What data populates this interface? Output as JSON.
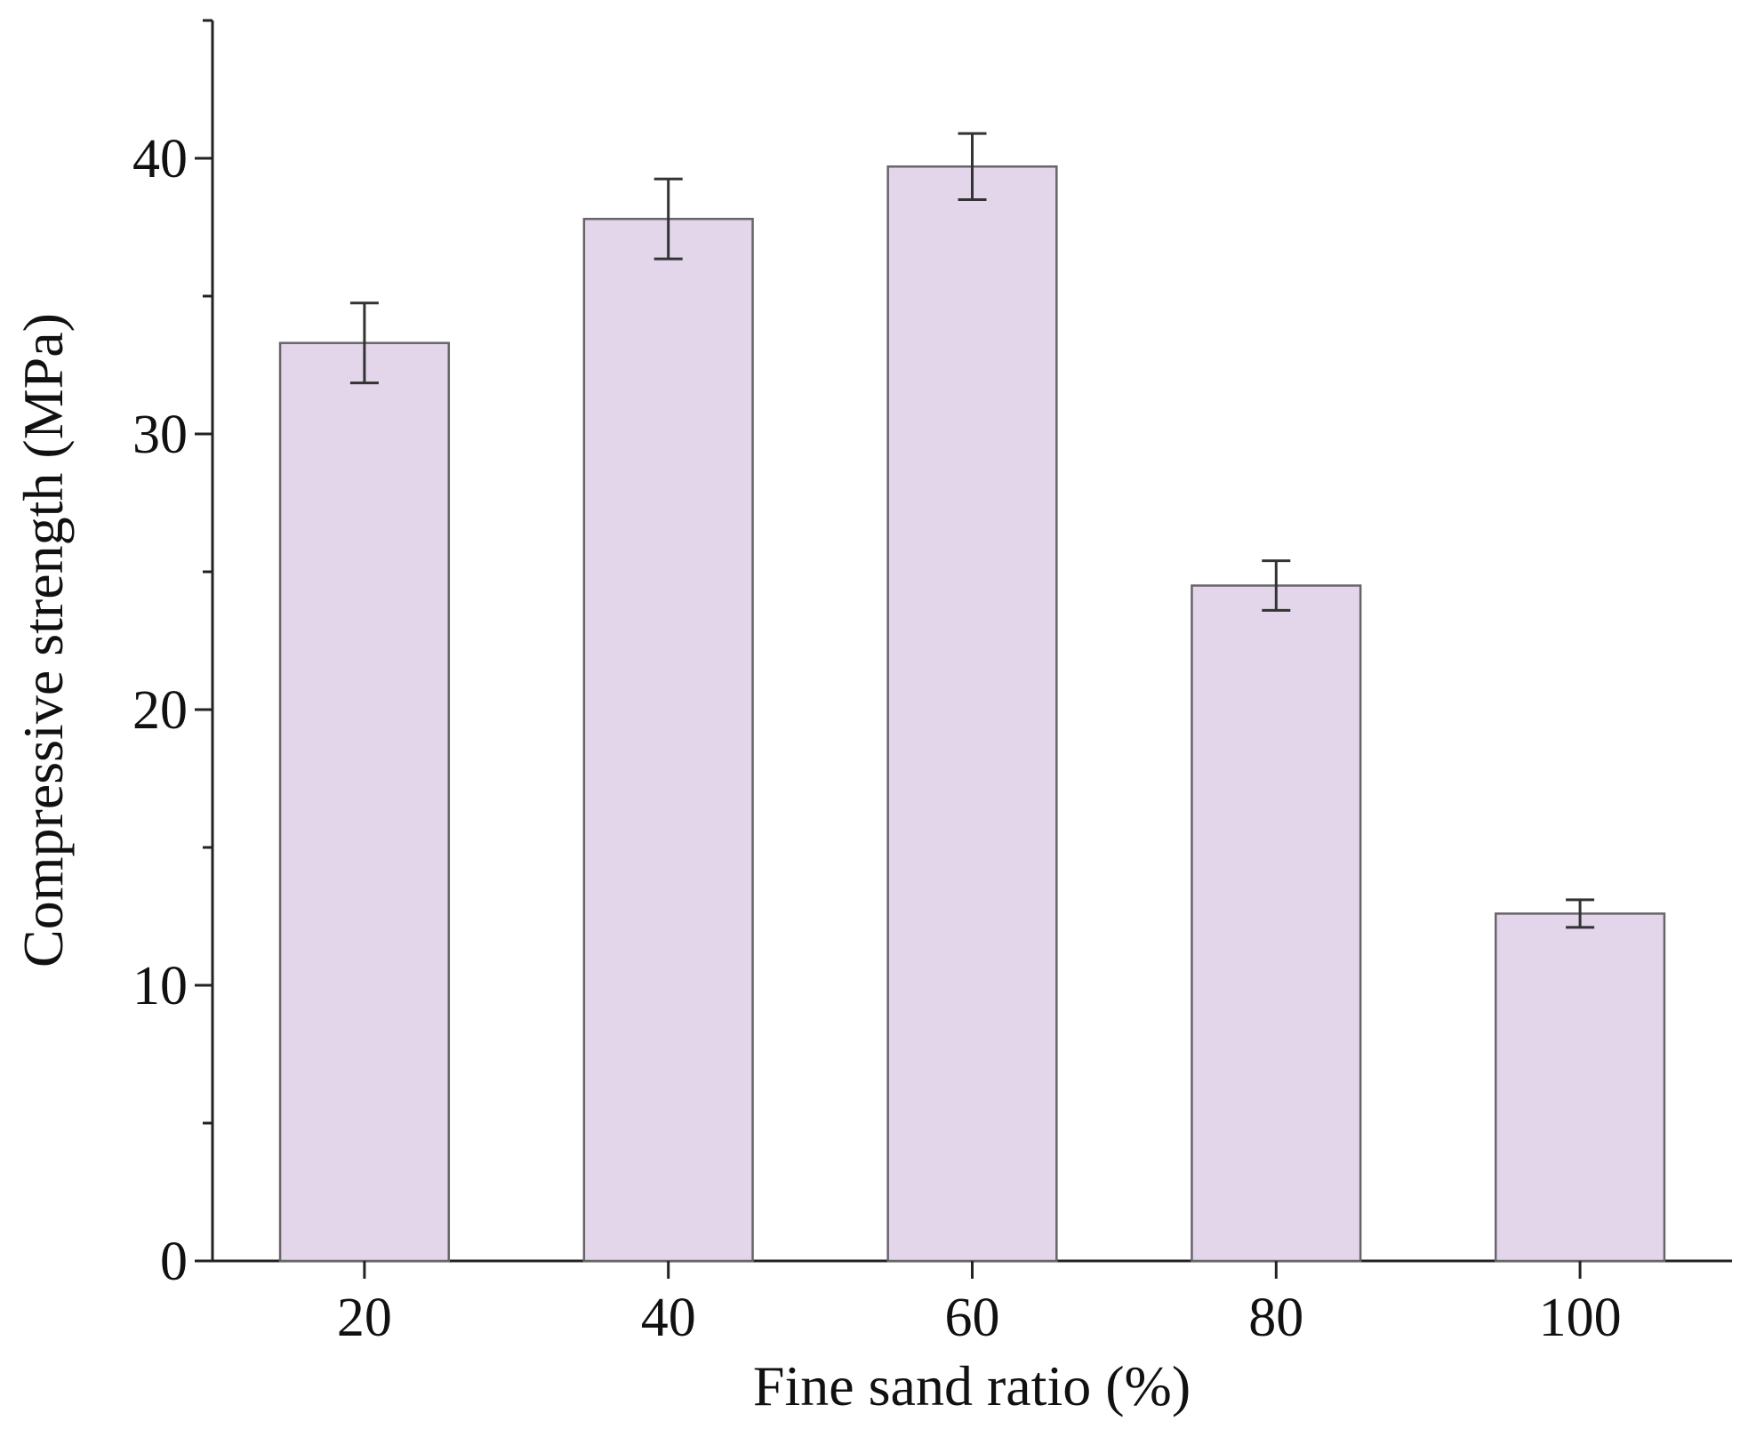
{
  "chart_data": {
    "type": "bar",
    "x_label": "Fine sand ratio (%)",
    "y_label": "Compressive strength (MPa)",
    "categories": [
      "20",
      "40",
      "60",
      "80",
      "100"
    ],
    "values": [
      33.3,
      37.8,
      39.7,
      24.5,
      12.6
    ],
    "errors": [
      1.45,
      1.45,
      1.2,
      0.9,
      0.5
    ],
    "color": "#e3d5ea",
    "ylim": [
      0,
      45
    ],
    "yticks": [
      0,
      10,
      20,
      30,
      40
    ],
    "yminorticks": [
      5,
      15,
      25,
      35,
      45
    ]
  }
}
